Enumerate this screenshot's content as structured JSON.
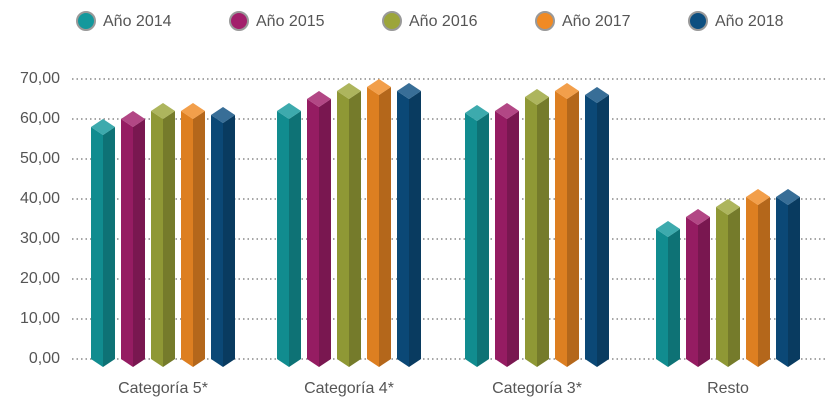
{
  "chart_data": {
    "type": "bar",
    "categories": [
      "Categoría 5*",
      "Categoría 4*",
      "Categoría 3*",
      "Resto"
    ],
    "series": [
      {
        "name": "Año 2014",
        "color": "#13989c",
        "values": [
          58,
          62,
          61.5,
          32.5
        ]
      },
      {
        "name": "Año 2015",
        "color": "#a21f6b",
        "values": [
          60,
          65,
          62,
          35.5
        ]
      },
      {
        "name": "Año 2016",
        "color": "#9ca53a",
        "values": [
          62,
          67,
          65.5,
          38
        ]
      },
      {
        "name": "Año 2017",
        "color": "#f08a24",
        "values": [
          62,
          68,
          67,
          40.5
        ]
      },
      {
        "name": "Año 2018",
        "color": "#0d4f80",
        "values": [
          61,
          67,
          66,
          40.5
        ]
      }
    ],
    "ylim": [
      0,
      70
    ],
    "yticks": [
      {
        "value": 0,
        "label": "0,00"
      },
      {
        "value": 10,
        "label": "10,00"
      },
      {
        "value": 20,
        "label": "20,00"
      },
      {
        "value": 30,
        "label": "30,00"
      },
      {
        "value": 40,
        "label": "40,00"
      },
      {
        "value": 50,
        "label": "50,00"
      },
      {
        "value": 60,
        "label": "60,00"
      },
      {
        "value": 70,
        "label": "70,00"
      }
    ],
    "grid": true,
    "legend": "top"
  }
}
